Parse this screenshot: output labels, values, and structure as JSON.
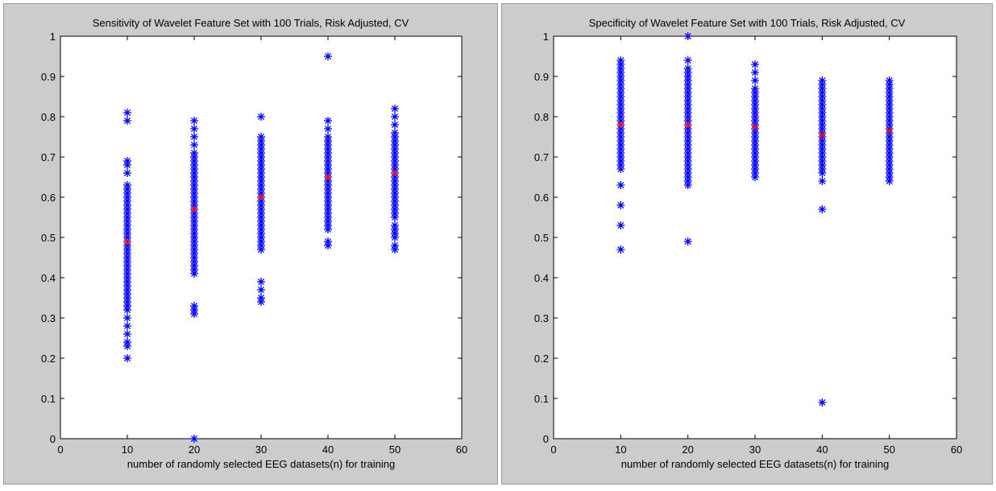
{
  "chart_data": [
    {
      "type": "scatter",
      "title": "Sensitivity of Wavelet Feature Set with 100 Trials, Risk Adjusted, CV",
      "xlabel": "number of randomly selected EEG datasets(n) for training",
      "ylabel": "",
      "xlim": [
        0,
        60
      ],
      "ylim": [
        0,
        1
      ],
      "xticks": [
        "0",
        "10",
        "20",
        "30",
        "40",
        "50",
        "60"
      ],
      "yticks": [
        "0",
        "0.1",
        "0.2",
        "0.3",
        "0.4",
        "0.5",
        "0.6",
        "0.7",
        "0.8",
        "0.9",
        "1"
      ],
      "grid": false,
      "colors": {
        "trials": "#0000ff",
        "mean": "#ff0000"
      },
      "groups": [
        {
          "x": 10,
          "mean": 0.49,
          "values": [
            0.81,
            0.79,
            0.69,
            0.68,
            0.66,
            0.63,
            0.62,
            0.61,
            0.6,
            0.59,
            0.58,
            0.57,
            0.56,
            0.55,
            0.54,
            0.53,
            0.52,
            0.51,
            0.5,
            0.49,
            0.48,
            0.47,
            0.46,
            0.45,
            0.44,
            0.43,
            0.42,
            0.41,
            0.4,
            0.39,
            0.38,
            0.37,
            0.36,
            0.35,
            0.34,
            0.33,
            0.32,
            0.3,
            0.28,
            0.26,
            0.24,
            0.23,
            0.2
          ]
        },
        {
          "x": 20,
          "mean": 0.57,
          "values": [
            0.79,
            0.77,
            0.75,
            0.73,
            0.71,
            0.7,
            0.69,
            0.68,
            0.67,
            0.66,
            0.65,
            0.64,
            0.63,
            0.62,
            0.61,
            0.6,
            0.59,
            0.58,
            0.57,
            0.56,
            0.55,
            0.54,
            0.53,
            0.52,
            0.51,
            0.5,
            0.49,
            0.48,
            0.47,
            0.46,
            0.45,
            0.44,
            0.43,
            0.42,
            0.41,
            0.33,
            0.32,
            0.31,
            0.0
          ]
        },
        {
          "x": 30,
          "mean": 0.6,
          "values": [
            0.8,
            0.75,
            0.74,
            0.73,
            0.72,
            0.71,
            0.7,
            0.69,
            0.68,
            0.67,
            0.66,
            0.65,
            0.64,
            0.63,
            0.62,
            0.61,
            0.6,
            0.59,
            0.58,
            0.57,
            0.56,
            0.55,
            0.54,
            0.53,
            0.52,
            0.51,
            0.5,
            0.49,
            0.48,
            0.47,
            0.39,
            0.37,
            0.35,
            0.34
          ]
        },
        {
          "x": 40,
          "mean": 0.65,
          "values": [
            0.95,
            0.79,
            0.77,
            0.75,
            0.74,
            0.73,
            0.72,
            0.71,
            0.7,
            0.69,
            0.68,
            0.67,
            0.66,
            0.65,
            0.64,
            0.63,
            0.62,
            0.61,
            0.6,
            0.59,
            0.58,
            0.57,
            0.56,
            0.55,
            0.54,
            0.53,
            0.52,
            0.49,
            0.48
          ]
        },
        {
          "x": 50,
          "mean": 0.66,
          "values": [
            0.82,
            0.8,
            0.78,
            0.76,
            0.75,
            0.74,
            0.73,
            0.72,
            0.71,
            0.7,
            0.69,
            0.68,
            0.67,
            0.66,
            0.65,
            0.64,
            0.63,
            0.62,
            0.61,
            0.6,
            0.59,
            0.58,
            0.57,
            0.56,
            0.55,
            0.53,
            0.52,
            0.51,
            0.5,
            0.48,
            0.47
          ]
        }
      ]
    },
    {
      "type": "scatter",
      "title": "Specificity of Wavelet Feature Set with 100 Trials, Risk Adjusted, CV",
      "xlabel": "number of randomly selected EEG datasets(n) for training",
      "ylabel": "",
      "xlim": [
        0,
        60
      ],
      "ylim": [
        0,
        1
      ],
      "xticks": [
        "0",
        "10",
        "20",
        "30",
        "40",
        "50",
        "60"
      ],
      "yticks": [
        "0",
        "0.1",
        "0.2",
        "0.3",
        "0.4",
        "0.5",
        "0.6",
        "0.7",
        "0.8",
        "0.9",
        "1"
      ],
      "grid": false,
      "colors": {
        "trials": "#0000ff",
        "mean": "#ff0000"
      },
      "groups": [
        {
          "x": 10,
          "mean": 0.78,
          "values": [
            0.94,
            0.93,
            0.92,
            0.91,
            0.9,
            0.89,
            0.88,
            0.87,
            0.86,
            0.85,
            0.84,
            0.83,
            0.82,
            0.81,
            0.8,
            0.79,
            0.78,
            0.77,
            0.76,
            0.75,
            0.74,
            0.73,
            0.72,
            0.71,
            0.7,
            0.69,
            0.68,
            0.67,
            0.63,
            0.58,
            0.53,
            0.47
          ]
        },
        {
          "x": 20,
          "mean": 0.78,
          "values": [
            1.0,
            0.94,
            0.92,
            0.91,
            0.9,
            0.89,
            0.88,
            0.87,
            0.86,
            0.85,
            0.84,
            0.83,
            0.82,
            0.81,
            0.8,
            0.79,
            0.78,
            0.77,
            0.76,
            0.75,
            0.74,
            0.73,
            0.72,
            0.71,
            0.7,
            0.69,
            0.68,
            0.67,
            0.66,
            0.65,
            0.64,
            0.63,
            0.49
          ]
        },
        {
          "x": 30,
          "mean": 0.775,
          "values": [
            0.93,
            0.91,
            0.89,
            0.87,
            0.86,
            0.85,
            0.84,
            0.83,
            0.82,
            0.81,
            0.8,
            0.79,
            0.78,
            0.77,
            0.76,
            0.75,
            0.74,
            0.73,
            0.72,
            0.71,
            0.7,
            0.69,
            0.68,
            0.67,
            0.66,
            0.65
          ]
        },
        {
          "x": 40,
          "mean": 0.755,
          "values": [
            0.89,
            0.88,
            0.87,
            0.86,
            0.85,
            0.84,
            0.83,
            0.82,
            0.81,
            0.8,
            0.79,
            0.78,
            0.77,
            0.76,
            0.75,
            0.74,
            0.73,
            0.72,
            0.71,
            0.7,
            0.69,
            0.68,
            0.67,
            0.66,
            0.64,
            0.57,
            0.09
          ]
        },
        {
          "x": 50,
          "mean": 0.765,
          "values": [
            0.89,
            0.88,
            0.87,
            0.86,
            0.85,
            0.84,
            0.83,
            0.82,
            0.81,
            0.8,
            0.79,
            0.78,
            0.77,
            0.76,
            0.75,
            0.74,
            0.73,
            0.72,
            0.71,
            0.7,
            0.69,
            0.68,
            0.67,
            0.66,
            0.65,
            0.64
          ]
        }
      ]
    }
  ]
}
